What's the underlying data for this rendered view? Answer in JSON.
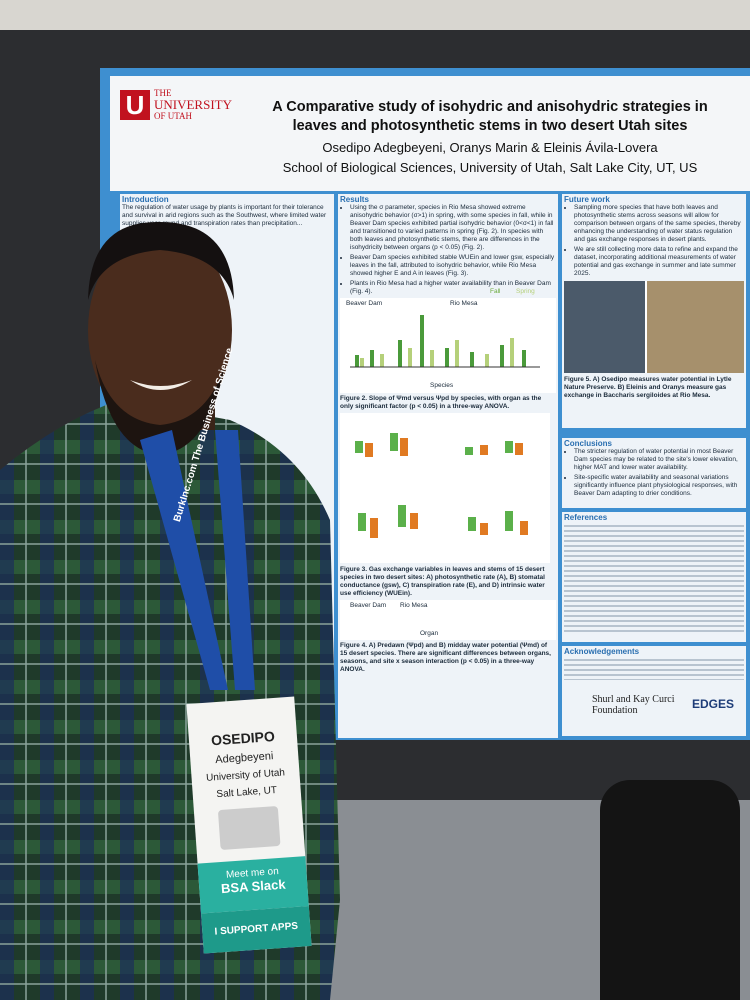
{
  "poster": {
    "logo": {
      "line1": "THE",
      "line2": "UNIVERSITY",
      "line3": "OF UTAH"
    },
    "title": "A Comparative study of isohydric and anisohydric strategies in leaves and photosynthetic stems in two desert Utah sites",
    "authors": "Osedipo Adegbeyeni, Oranys Marin & Eleinis Ávila-Lovera",
    "affiliation": "School of Biological Sciences, University of Utah, Salt Lake City, UT, US",
    "introduction": {
      "heading": "Introduction",
      "text": "The regulation of water usage by plants is important for their tolerance and survival in arid regions such as the Southwest, where limited water supplies year-round and transpiration rates than precipitation..."
    },
    "results": {
      "heading": "Results",
      "bullets": [
        "Using the σ parameter, species in Rio Mesa showed extreme anisohydric behavior (σ>1) in spring, with some species in fall, while in Beaver Dam species exhibited partial isohydric behavior (0<σ<1) in fall and transitioned to varied patterns in spring (Fig. 2). In species with both leaves and photosynthetic stems, there are differences in the isohydricity between organs (p < 0.05) (Fig. 2).",
        "Beaver Dam species exhibited stable WUEin and lower gsw, especially leaves in the fall, attributed to isohydric behavior, while Rio Mesa showed higher E and A in leaves (Fig. 3).",
        "Plants in Rio Mesa had a higher water availability than in Beaver Dam (Fig. 4)."
      ],
      "fig2": {
        "legend_fall": "Fall",
        "legend_spring": "Spring",
        "site1": "Beaver Dam",
        "site2": "Rio Mesa",
        "xlabel": "Species",
        "caption": "Figure 2. Slope of Ψmd versus Ψpd by species, with organ as the only significant factor (p < 0.05) in a three-way ANOVA."
      },
      "fig3": {
        "caption": "Figure 3. Gas exchange variables in leaves and stems of 15 desert species in two desert sites: A) photosynthetic rate (A), B) stomatal conductance (gsw), C) transpiration rate (E), and D) intrinsic water use efficiency (WUEin)."
      },
      "fig4": {
        "site1": "Beaver Dam",
        "site2": "Rio Mesa",
        "xlabel": "Organ",
        "caption": "Figure 4. A) Predawn (Ψpd) and B) midday water potential (Ψmd) of 15 desert species. There are significant differences between organs, seasons, and site x season interaction (p < 0.05) in a three-way ANOVA."
      }
    },
    "future_work": {
      "heading": "Future work",
      "bullets": [
        "Sampling more species that have both leaves and photosynthetic stems across seasons will allow for comparison between organs of the same species, thereby enhancing the understanding of water status regulation and gas exchange responses in desert plants.",
        "We are still collecting more data to refine and expand the dataset, incorporating additional measurements of water potential and gas exchange in summer and late summer 2025."
      ],
      "fig5_caption": "Figure 5. A) Osedipo measures water potential in Lytle Nature Preserve. B) Eleinis and Oranys measure gas exchange in Baccharis sergiloides at Rio Mesa."
    },
    "conclusions": {
      "heading": "Conclusions",
      "bullets": [
        "The stricter regulation of water potential in most Beaver Dam species may be related to the site's lower elevation, higher MAT and lower water availability.",
        "Site-specific water availability and seasonal variations significantly influence plant physiological responses, with Beaver Dam adapting to drier conditions."
      ]
    },
    "references": {
      "heading": "References"
    },
    "acknowledgements": {
      "heading": "Acknowledgements"
    },
    "sponsor": {
      "foundation": "Shurl and Kay Curci Foundation",
      "edges": "EDGES"
    }
  },
  "lanyard": "BurkInc.com The Business of Science",
  "badge": {
    "first_name": "OSEDIPO",
    "last_name": "Adegbeyeni",
    "institution": "University of Utah",
    "location": "Salt Lake, UT",
    "slack_line1": "Meet me on",
    "slack_line2": "BSA Slack",
    "support": "I SUPPORT",
    "apps": "APPS"
  }
}
